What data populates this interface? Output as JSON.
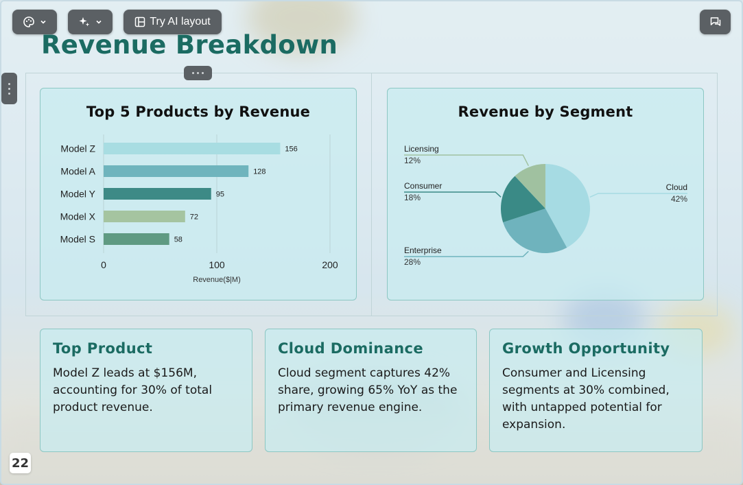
{
  "toolbar": {
    "theme_icon": "palette-icon",
    "ai_icon": "sparkle-icon",
    "try_ai_layout_label": "Try AI layout",
    "comment_icon": "comment-icon"
  },
  "slide": {
    "title": "Revenue Breakdown",
    "page_number": "22"
  },
  "charts": {
    "bar_title": "Top 5 Products by Revenue",
    "pie_title": "Revenue by Segment"
  },
  "chart_data": [
    {
      "type": "bar",
      "orientation": "horizontal",
      "title": "Top 5 Products by Revenue",
      "categories": [
        "Model Z",
        "Model A",
        "Model Y",
        "Model X",
        "Model S"
      ],
      "values": [
        156,
        128,
        95,
        72,
        58
      ],
      "xlabel": "Revenue($|M)",
      "xlim": [
        0,
        200
      ],
      "xticks": [
        0,
        100,
        200
      ],
      "colors": [
        "#a8dde2",
        "#6fb4bd",
        "#3d8a86",
        "#a5c4a0",
        "#5f9a82"
      ],
      "grid": true
    },
    {
      "type": "pie",
      "title": "Revenue by Segment",
      "slices": [
        {
          "label": "Cloud",
          "value": 42,
          "pct": "42%",
          "color": "#a6dbe3"
        },
        {
          "label": "Enterprise",
          "value": 28,
          "pct": "28%",
          "color": "#6fb3bd"
        },
        {
          "label": "Consumer",
          "value": 18,
          "pct": "18%",
          "color": "#3a8a86"
        },
        {
          "label": "Licensing",
          "value": 12,
          "pct": "12%",
          "color": "#a0c1a0"
        }
      ]
    }
  ],
  "insights": [
    {
      "title": "Top Product",
      "text": "Model Z leads at $156M, accounting for 30% of total product revenue."
    },
    {
      "title": "Cloud Dominance",
      "text": "Cloud segment captures 42% share, growing 65% YoY as the primary revenue engine."
    },
    {
      "title": "Growth Opportunity",
      "text": "Consumer and Licensing segments at 30% combined, with untapped potential for expansion."
    }
  ],
  "colors": {
    "accent": "#1b6b62",
    "toolbar_bg": "#5b6064",
    "card_bg": "#c8ecf0",
    "card_border": "#8cc7c3"
  }
}
